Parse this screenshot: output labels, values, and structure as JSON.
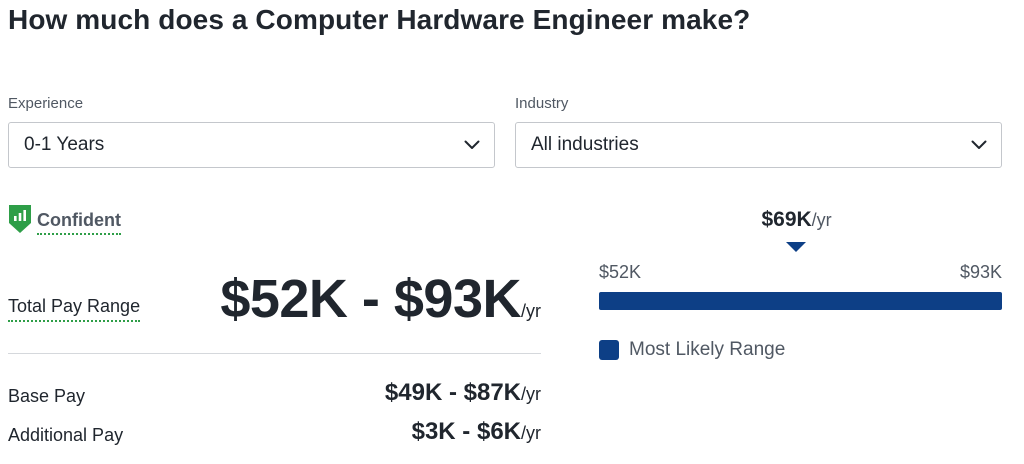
{
  "page": {
    "title": "How much does a Computer Hardware Engineer make?"
  },
  "filters": {
    "experience": {
      "label": "Experience",
      "value": "0-1 Years"
    },
    "industry": {
      "label": "Industry",
      "value": "All industries"
    }
  },
  "confidence": {
    "label": "Confident",
    "icon": "shield-bars-icon",
    "color": "#2e9e48"
  },
  "pay": {
    "total": {
      "label": "Total Pay Range",
      "range": "$52K - $93K",
      "unit": "/yr"
    },
    "base": {
      "label": "Base Pay",
      "range": "$49K - $87K",
      "unit": "/yr"
    },
    "additional": {
      "label": "Additional Pay",
      "range": "$3K - $6K",
      "unit": "/yr"
    }
  },
  "range_chart": {
    "median_value": "$69K",
    "median_unit": "/yr",
    "min_label": "$52K",
    "max_label": "$93K",
    "median_fraction": 0.49,
    "legend_label": "Most Likely Range",
    "bar_color": "#0d3f86"
  }
}
